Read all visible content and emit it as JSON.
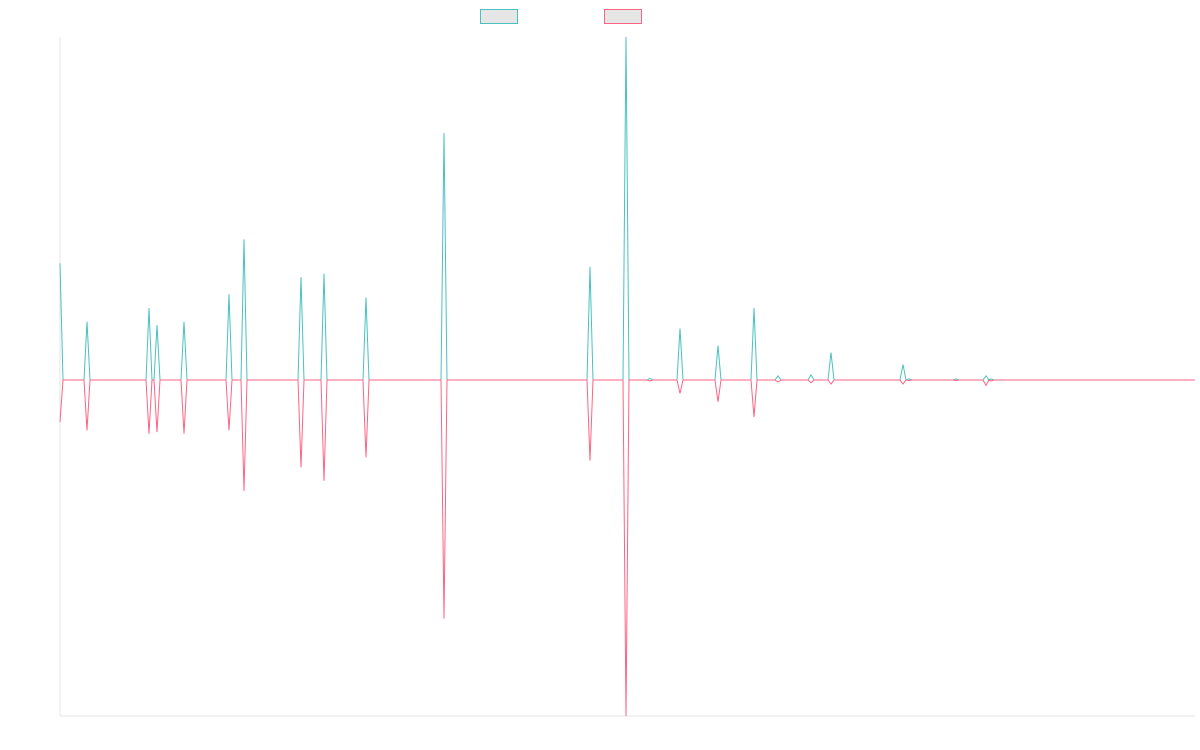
{
  "chart_data": {
    "type": "line",
    "title": "",
    "xlabel": "",
    "ylabel": "",
    "grid": false,
    "legend_position": "top-center",
    "ylim": [
      -1,
      1
    ],
    "series": [
      {
        "color": "#4bc0c0",
        "points": [
          [
            0,
            0.34
          ],
          [
            27,
            0.17
          ],
          [
            89,
            0.21
          ],
          [
            97,
            0.16
          ],
          [
            124,
            0.17
          ],
          [
            169,
            0.25
          ],
          [
            184,
            0.41
          ],
          [
            241,
            0.3
          ],
          [
            264,
            0.31
          ],
          [
            306,
            0.24
          ],
          [
            384,
            0.72
          ],
          [
            530,
            0.33
          ],
          [
            566,
            1.0
          ],
          [
            590,
            0.005
          ],
          [
            620,
            0.15
          ],
          [
            658,
            0.1
          ],
          [
            694,
            0.21
          ],
          [
            718,
            0.012
          ],
          [
            751,
            0.015
          ],
          [
            771,
            0.08
          ],
          [
            843,
            0.045
          ],
          [
            849,
            0.003
          ],
          [
            896,
            0.003
          ],
          [
            926,
            0.012
          ],
          [
            931,
            0.003
          ]
        ]
      },
      {
        "color": "#ff6384",
        "points": [
          [
            0,
            -0.125
          ],
          [
            27,
            -0.15
          ],
          [
            89,
            -0.16
          ],
          [
            97,
            -0.155
          ],
          [
            124,
            -0.16
          ],
          [
            169,
            -0.15
          ],
          [
            184,
            -0.33
          ],
          [
            241,
            -0.26
          ],
          [
            264,
            -0.3
          ],
          [
            306,
            -0.23
          ],
          [
            384,
            -0.71
          ],
          [
            530,
            -0.24
          ],
          [
            566,
            -1.0
          ],
          [
            590,
            -0.003
          ],
          [
            620,
            -0.04
          ],
          [
            658,
            -0.065
          ],
          [
            694,
            -0.11
          ],
          [
            718,
            -0.006
          ],
          [
            751,
            -0.008
          ],
          [
            771,
            -0.012
          ],
          [
            843,
            -0.012
          ],
          [
            849,
            -0.002
          ],
          [
            896,
            -0.002
          ],
          [
            926,
            -0.016
          ],
          [
            931,
            -0.003
          ]
        ]
      }
    ]
  }
}
